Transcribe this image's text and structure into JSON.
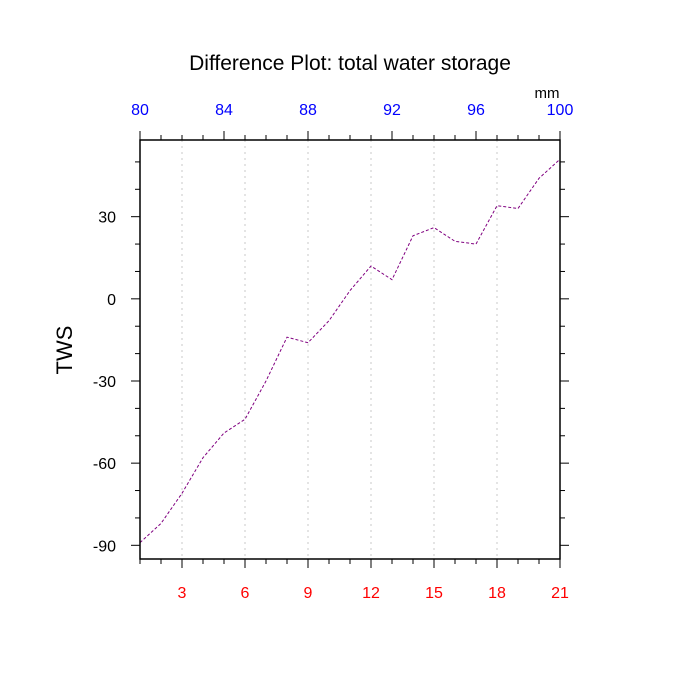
{
  "chart_data": {
    "type": "line",
    "title": "Difference Plot: total water storage",
    "ylabel": "TWS",
    "top_axis_unit": "mm",
    "bottom_axis": {
      "range": [
        1,
        21
      ],
      "ticks": [
        3,
        6,
        9,
        12,
        15,
        18,
        21
      ],
      "tick_labels": [
        "3",
        "6",
        "9",
        "12",
        "15",
        "18",
        "21"
      ],
      "color": "#ff0000"
    },
    "top_axis": {
      "range": [
        80,
        100
      ],
      "ticks": [
        80,
        84,
        88,
        92,
        96,
        100
      ],
      "tick_labels": [
        "80",
        "84",
        "88",
        "92",
        "96",
        "100"
      ],
      "color": "#0000ff"
    },
    "y_axis": {
      "range": [
        -95,
        58
      ],
      "ticks": [
        -90,
        -60,
        -30,
        0,
        30
      ],
      "tick_labels": [
        "-90",
        "-60",
        "-30",
        "0",
        "30"
      ]
    },
    "vertical_grid": true,
    "series": [
      {
        "color": "#800080",
        "dash": "dashed",
        "x": [
          1,
          2,
          3,
          4,
          5,
          6,
          7,
          8,
          9,
          10,
          11,
          12,
          13,
          14,
          15,
          16,
          17,
          18,
          19,
          20,
          21
        ],
        "y": [
          -89,
          -82,
          -71,
          -58,
          -49,
          -44,
          -30,
          -14,
          -16,
          -8,
          3,
          12,
          7,
          23,
          26,
          21,
          20,
          34,
          33,
          44,
          51
        ]
      }
    ]
  }
}
